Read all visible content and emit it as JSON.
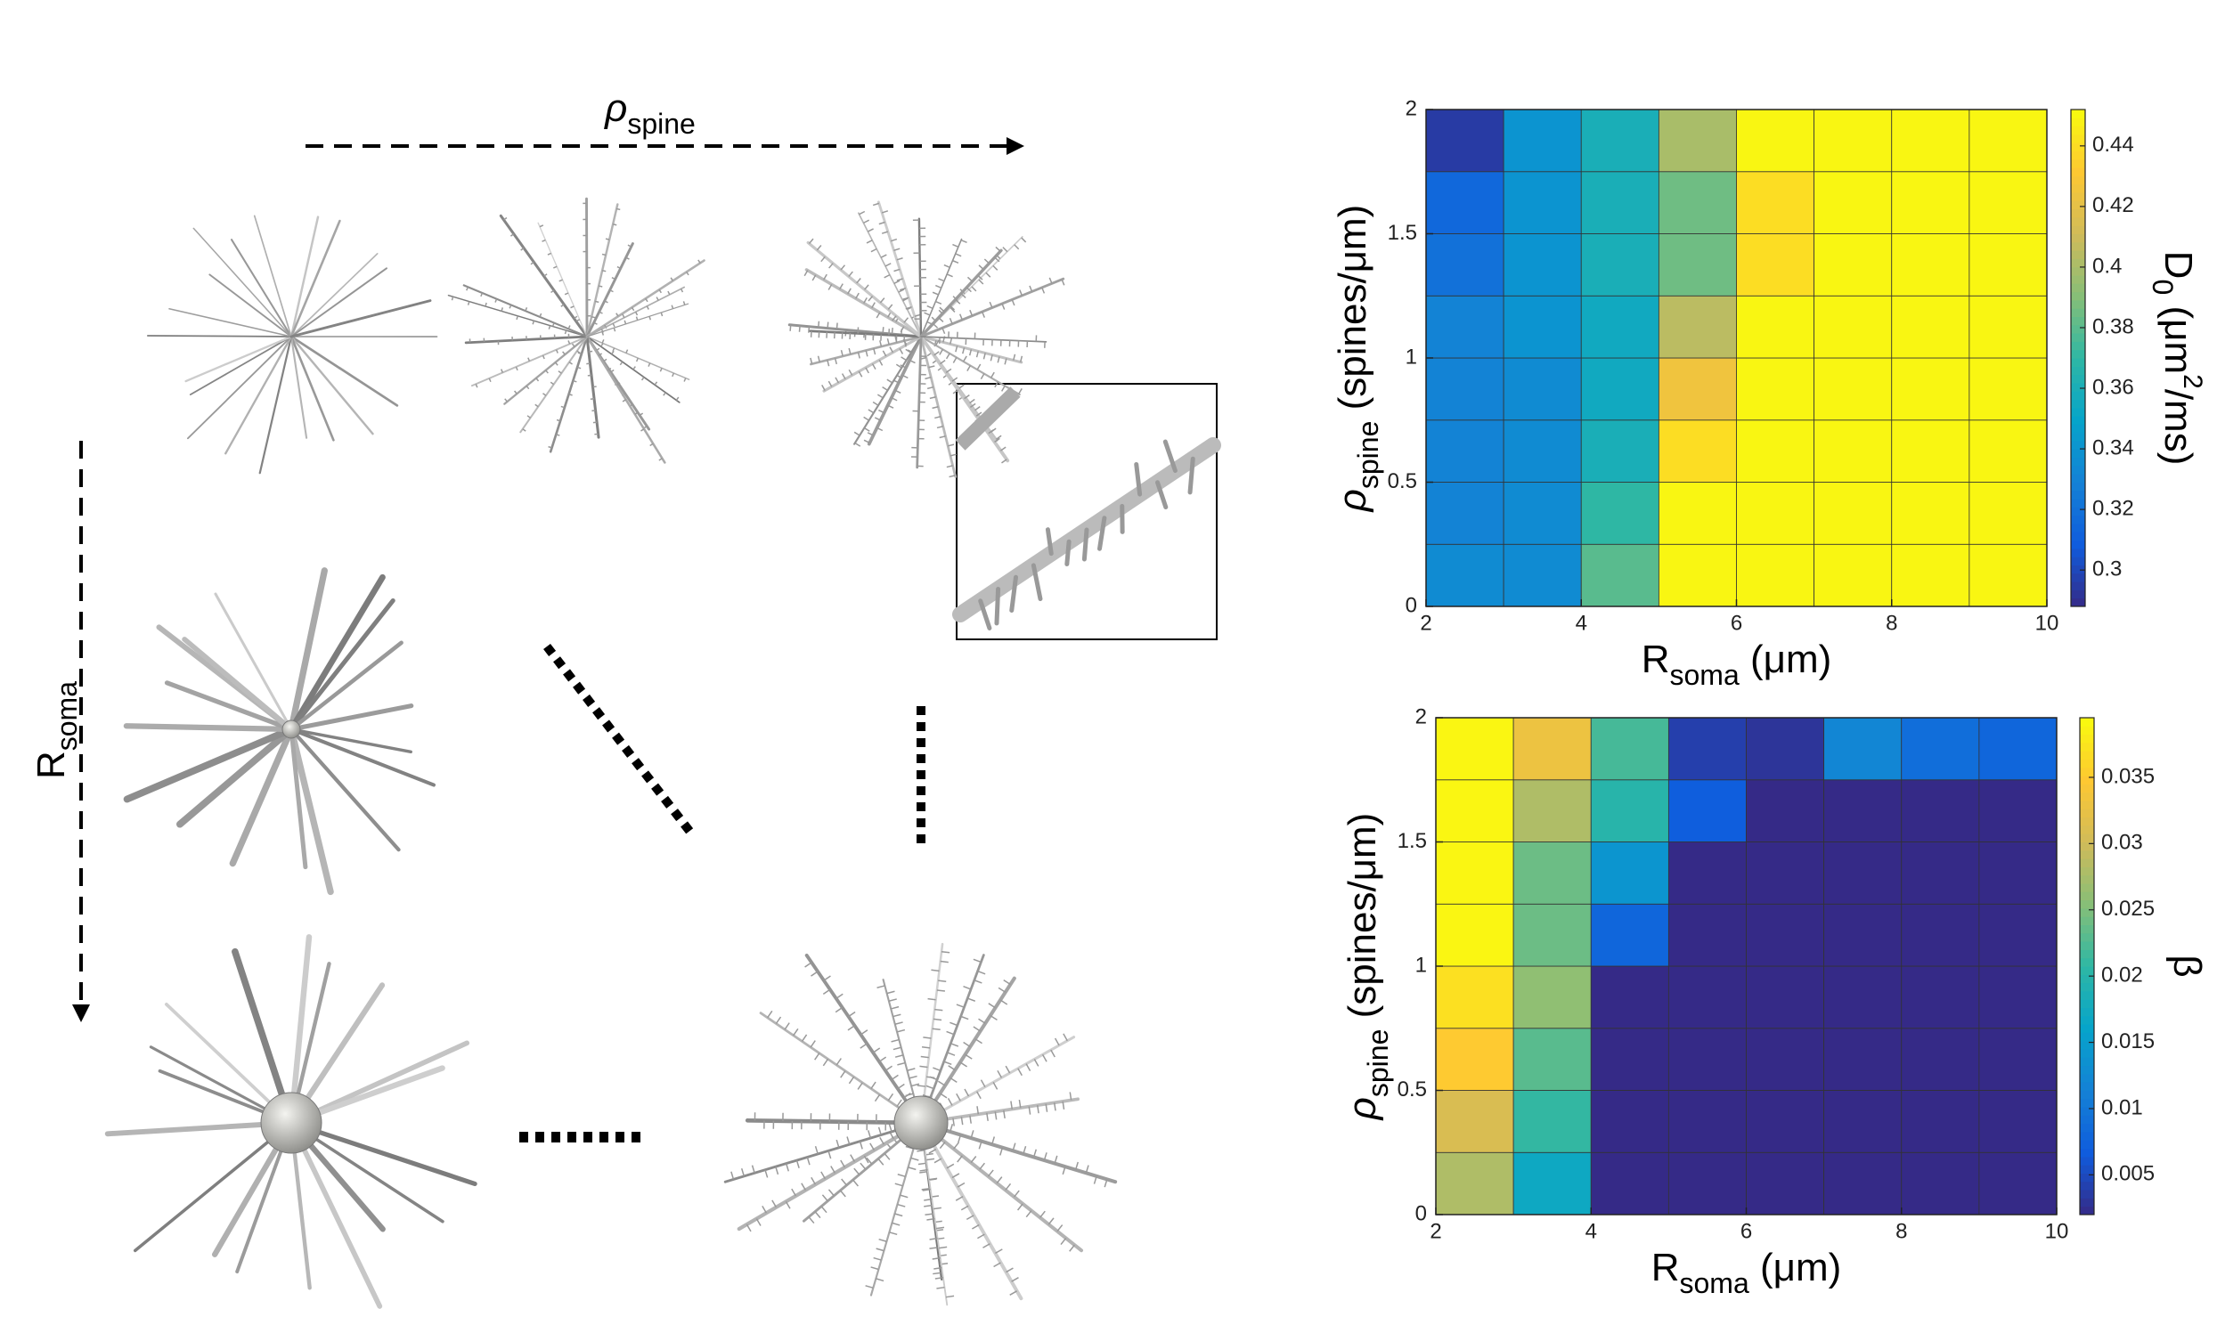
{
  "diagram": {
    "top_label": [
      "ρ",
      "spine"
    ],
    "left_label": [
      "R",
      "soma"
    ]
  },
  "chart_data": [
    {
      "type": "heatmap",
      "colormap": "parula",
      "xlabel": [
        "R",
        "soma",
        " (μm)"
      ],
      "ylabel": [
        "ρ",
        "spine",
        " (spines/μm)"
      ],
      "colorbar_label": [
        "D",
        "0",
        " (μm",
        "2",
        "/ms)"
      ],
      "xbins": [
        2,
        3,
        4,
        5,
        6,
        7,
        8,
        9,
        10
      ],
      "ybins": [
        0,
        0.25,
        0.5,
        0.75,
        1,
        1.25,
        1.5,
        1.75,
        2
      ],
      "z": [
        [
          0.335,
          0.335,
          0.38,
          0.45,
          0.45,
          0.45,
          0.45,
          0.45
        ],
        [
          0.33,
          0.335,
          0.37,
          0.45,
          0.45,
          0.45,
          0.45,
          0.45
        ],
        [
          0.33,
          0.335,
          0.36,
          0.44,
          0.45,
          0.45,
          0.45,
          0.45
        ],
        [
          0.33,
          0.335,
          0.355,
          0.425,
          0.45,
          0.45,
          0.45,
          0.45
        ],
        [
          0.33,
          0.34,
          0.355,
          0.405,
          0.45,
          0.45,
          0.45,
          0.45
        ],
        [
          0.32,
          0.34,
          0.36,
          0.385,
          0.44,
          0.45,
          0.45,
          0.45
        ],
        [
          0.315,
          0.34,
          0.36,
          0.385,
          0.44,
          0.45,
          0.45,
          0.45
        ],
        [
          0.295,
          0.34,
          0.36,
          0.4,
          0.45,
          0.45,
          0.45,
          0.45
        ]
      ],
      "xlim": [
        2,
        10
      ],
      "ylim": [
        0,
        2
      ],
      "xticks": [
        2,
        4,
        6,
        8,
        10
      ],
      "yticks": [
        0,
        0.5,
        1,
        1.5,
        2
      ],
      "clim": [
        0.288,
        0.452
      ],
      "cticks": [
        0.3,
        0.32,
        0.34,
        0.36,
        0.38,
        0.4,
        0.42,
        0.44
      ]
    },
    {
      "type": "heatmap",
      "colormap": "parula",
      "xlabel": [
        "R",
        "soma",
        " (μm)"
      ],
      "ylabel": [
        "ρ",
        "spine",
        " (spines/μm)"
      ],
      "colorbar_label": [
        "β"
      ],
      "xbins": [
        2,
        3,
        4,
        5,
        6,
        7,
        8,
        9,
        10
      ],
      "ybins": [
        0,
        0.25,
        0.5,
        0.75,
        1,
        1.25,
        1.5,
        1.75,
        2
      ],
      "z": [
        [
          0.028,
          0.017,
          0.002,
          0.002,
          0.002,
          0.002,
          0.002,
          0.002
        ],
        [
          0.031,
          0.021,
          0.002,
          0.002,
          0.002,
          0.002,
          0.002,
          0.002
        ],
        [
          0.035,
          0.023,
          0.002,
          0.002,
          0.002,
          0.002,
          0.002,
          0.002
        ],
        [
          0.037,
          0.026,
          0.002,
          0.002,
          0.002,
          0.002,
          0.002,
          0.002
        ],
        [
          0.039,
          0.024,
          0.008,
          0.002,
          0.002,
          0.002,
          0.002,
          0.002
        ],
        [
          0.039,
          0.024,
          0.014,
          0.002,
          0.002,
          0.002,
          0.002,
          0.002
        ],
        [
          0.039,
          0.028,
          0.02,
          0.007,
          0.002,
          0.002,
          0.002,
          0.002
        ],
        [
          0.039,
          0.033,
          0.022,
          0.004,
          0.003,
          0.012,
          0.009,
          0.008
        ]
      ],
      "xlim": [
        2,
        10
      ],
      "ylim": [
        0,
        2
      ],
      "xticks": [
        2,
        4,
        6,
        8,
        10
      ],
      "yticks": [
        0,
        0.5,
        1,
        1.5,
        2
      ],
      "clim": [
        0.002,
        0.0395
      ],
      "cticks": [
        0.005,
        0.01,
        0.015,
        0.02,
        0.025,
        0.03,
        0.035
      ]
    }
  ]
}
